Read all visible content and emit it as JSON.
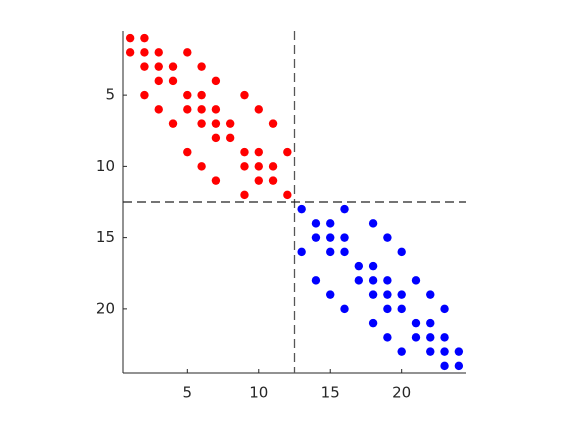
{
  "chart_data": {
    "type": "scatter",
    "series": [
      {
        "color": "#ff0000",
        "x": [
          1,
          2,
          1,
          2,
          3,
          5,
          2,
          3,
          4,
          6,
          3,
          4,
          7,
          2,
          5,
          6,
          9,
          3,
          5,
          6,
          7,
          10,
          4,
          6,
          7,
          8,
          11,
          7,
          8,
          5,
          9,
          10,
          12,
          6,
          9,
          10,
          11,
          7,
          10,
          11,
          9,
          12
        ],
        "y": [
          1,
          1,
          2,
          2,
          2,
          2,
          3,
          3,
          3,
          3,
          4,
          4,
          4,
          5,
          5,
          5,
          5,
          6,
          6,
          6,
          6,
          6,
          7,
          7,
          7,
          7,
          7,
          8,
          8,
          9,
          9,
          9,
          9,
          10,
          10,
          10,
          10,
          11,
          11,
          11,
          12,
          12
        ]
      },
      {
        "color": "#0000ff",
        "x": [
          13,
          16,
          14,
          15,
          18,
          14,
          15,
          16,
          19,
          13,
          15,
          16,
          20,
          17,
          18,
          14,
          17,
          18,
          19,
          21,
          15,
          18,
          19,
          20,
          22,
          16,
          19,
          20,
          23,
          18,
          21,
          22,
          19,
          21,
          22,
          23,
          20,
          22,
          23,
          24,
          23,
          24
        ],
        "y": [
          13,
          13,
          14,
          14,
          14,
          15,
          15,
          15,
          15,
          16,
          16,
          16,
          16,
          17,
          17,
          18,
          18,
          18,
          18,
          18,
          19,
          19,
          19,
          19,
          19,
          20,
          20,
          20,
          20,
          21,
          21,
          21,
          22,
          22,
          22,
          22,
          23,
          23,
          23,
          23,
          24,
          24
        ]
      }
    ],
    "xlim": [
      0.5,
      24.5
    ],
    "ylim": [
      0.5,
      24.5
    ],
    "y_reversed": true,
    "xticks": [
      5,
      10,
      15,
      20
    ],
    "yticks": [
      5,
      10,
      15,
      20
    ],
    "vlines": [
      12.5
    ],
    "hlines": [
      12.5
    ]
  }
}
